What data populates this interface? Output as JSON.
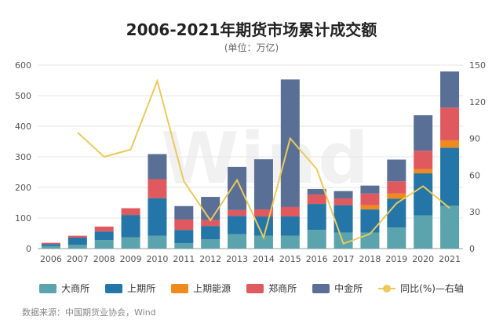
{
  "title": "2006-2021年期货市场累计成交额",
  "subtitle": "(单位：万亿)",
  "source": "数据来源：中国期货业协会，Wind",
  "watermark": "Wind",
  "colors": {
    "大商所": "#5ba3ad",
    "上期所": "#2475a8",
    "上期能源": "#f08a1c",
    "郑商所": "#e0595f",
    "中金所": "#5a6f96",
    "line": "#ecc95a"
  },
  "chart_data": {
    "type": "bar",
    "stacked": true,
    "categories": [
      "2006",
      "2007",
      "2008",
      "2009",
      "2010",
      "2011",
      "2012",
      "2013",
      "2014",
      "2015",
      "2016",
      "2017",
      "2018",
      "2019",
      "2020",
      "2021"
    ],
    "series": [
      {
        "name": "大商所",
        "values": [
          8,
          12,
          28,
          37,
          42,
          18,
          30,
          47,
          42,
          42,
          61,
          52,
          52,
          69,
          109,
          140
        ]
      },
      {
        "name": "上期所",
        "values": [
          7,
          24,
          28,
          73,
          123,
          43,
          44,
          60,
          63,
          63,
          85,
          90,
          76,
          94,
          137,
          190
        ]
      },
      {
        "name": "上期能源",
        "values": [
          0,
          0,
          0,
          0,
          0,
          0,
          0,
          0,
          0,
          0,
          0,
          0,
          14,
          17,
          14,
          24
        ]
      },
      {
        "name": "郑商所",
        "values": [
          4,
          6,
          16,
          22,
          62,
          34,
          19,
          19,
          23,
          31,
          31,
          22,
          38,
          40,
          60,
          107
        ]
      },
      {
        "name": "中金所",
        "values": [
          0,
          0,
          0,
          0,
          82,
          44,
          76,
          141,
          164,
          417,
          18,
          24,
          26,
          71,
          116,
          118
        ]
      }
    ],
    "line": {
      "name": "同比(%)—右轴",
      "axis": "right",
      "values": [
        null,
        95,
        75,
        81,
        137,
        55,
        23,
        56,
        9,
        90,
        65,
        4,
        12,
        37,
        51,
        33
      ]
    },
    "y_left": {
      "ylim": [
        0,
        600
      ],
      "ticks": [
        "0",
        "100",
        "200",
        "300",
        "400",
        "500",
        "600"
      ]
    },
    "y_right": {
      "ylim": [
        0,
        150
      ],
      "ticks": [
        "0",
        "30",
        "60",
        "90",
        "120",
        "150"
      ]
    },
    "grid": true,
    "legend": "bottom"
  }
}
